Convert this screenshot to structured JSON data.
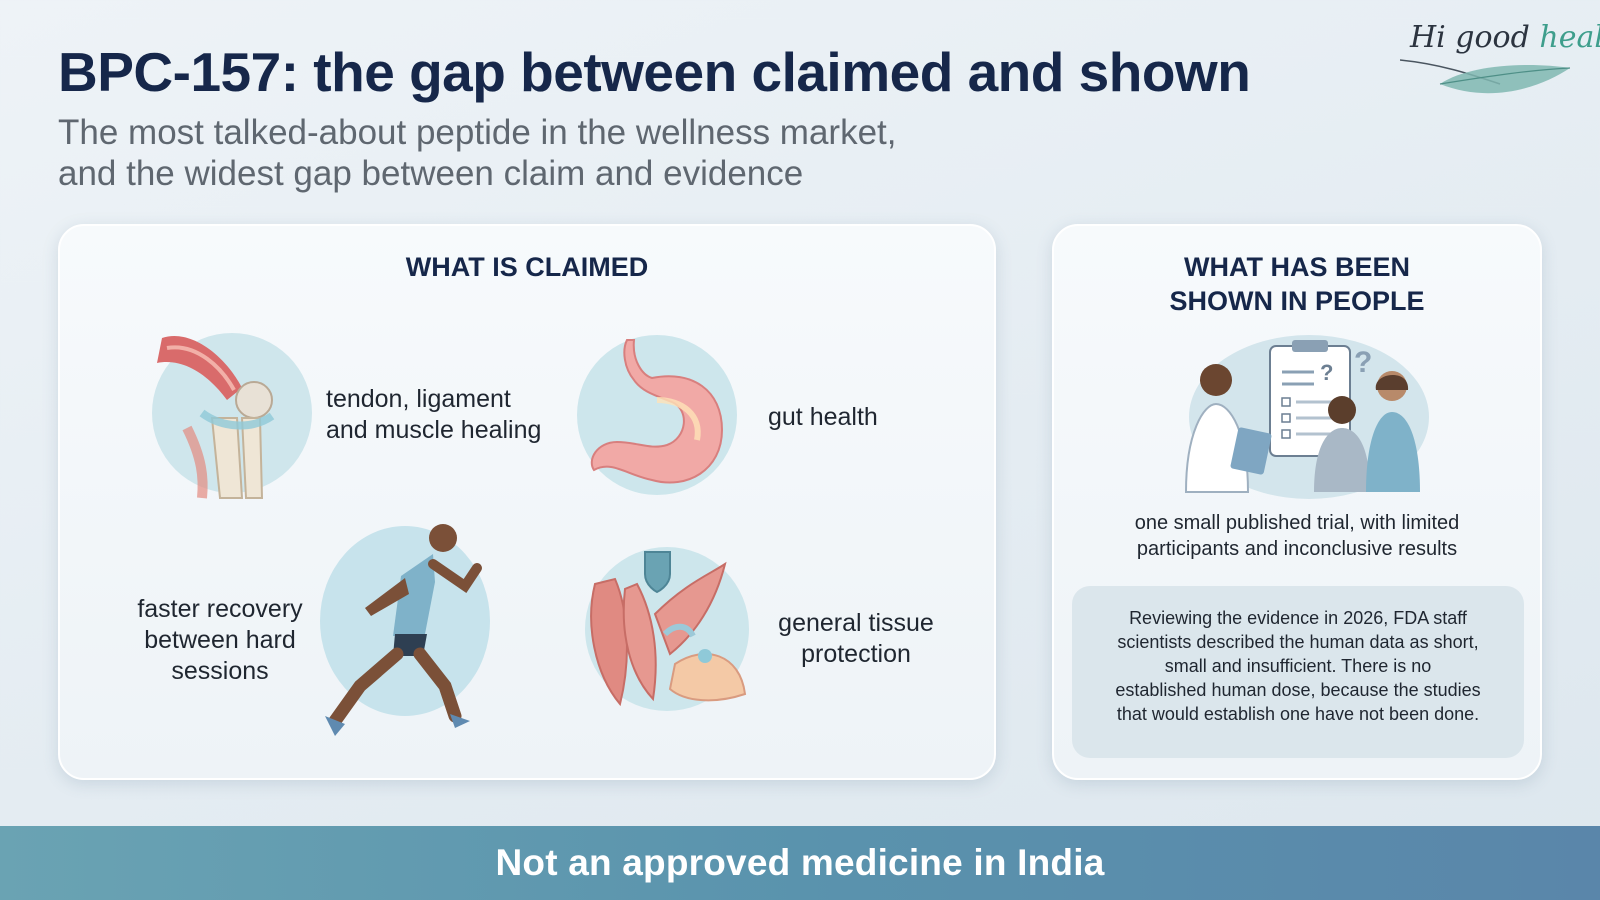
{
  "header": {
    "title": "BPC-157: the gap between claimed and shown",
    "subtitle_lines": [
      "The most talked-about peptide in the wellness market,",
      "and the widest gap between claim and evidence"
    ]
  },
  "logo": {
    "part1": "Hi good ",
    "part2": "health"
  },
  "claimed": {
    "heading": "WHAT IS CLAIMED",
    "items": [
      {
        "icon": "knee-joint-icon",
        "lines": [
          "tendon, ligament",
          "and muscle healing"
        ]
      },
      {
        "icon": "stomach-icon",
        "lines": [
          "gut health"
        ]
      },
      {
        "icon": "runner-icon",
        "lines": [
          "faster recovery",
          "between hard",
          "sessions"
        ]
      },
      {
        "icon": "tissue-shield-icon",
        "lines": [
          "general tissue",
          "protection"
        ]
      }
    ]
  },
  "shown": {
    "heading_lines": [
      "WHAT HAS BEEN",
      "SHOWN IN PEOPLE"
    ],
    "icon": "clinical-trial-icon",
    "summary_lines": [
      "one small published trial, with limited",
      "participants and inconclusive results"
    ],
    "note_lines": [
      "Reviewing the evidence in 2026, FDA staff",
      "scientists described the human data as short,",
      "small and insufficient. There is no",
      "established human dose, because the studies",
      "that would establish one have not been done."
    ]
  },
  "footer": {
    "banner": "Not an approved medicine in India"
  },
  "colors": {
    "title": "#16274a",
    "banner": "#5a93ad",
    "accent": "#3e9e8c"
  }
}
